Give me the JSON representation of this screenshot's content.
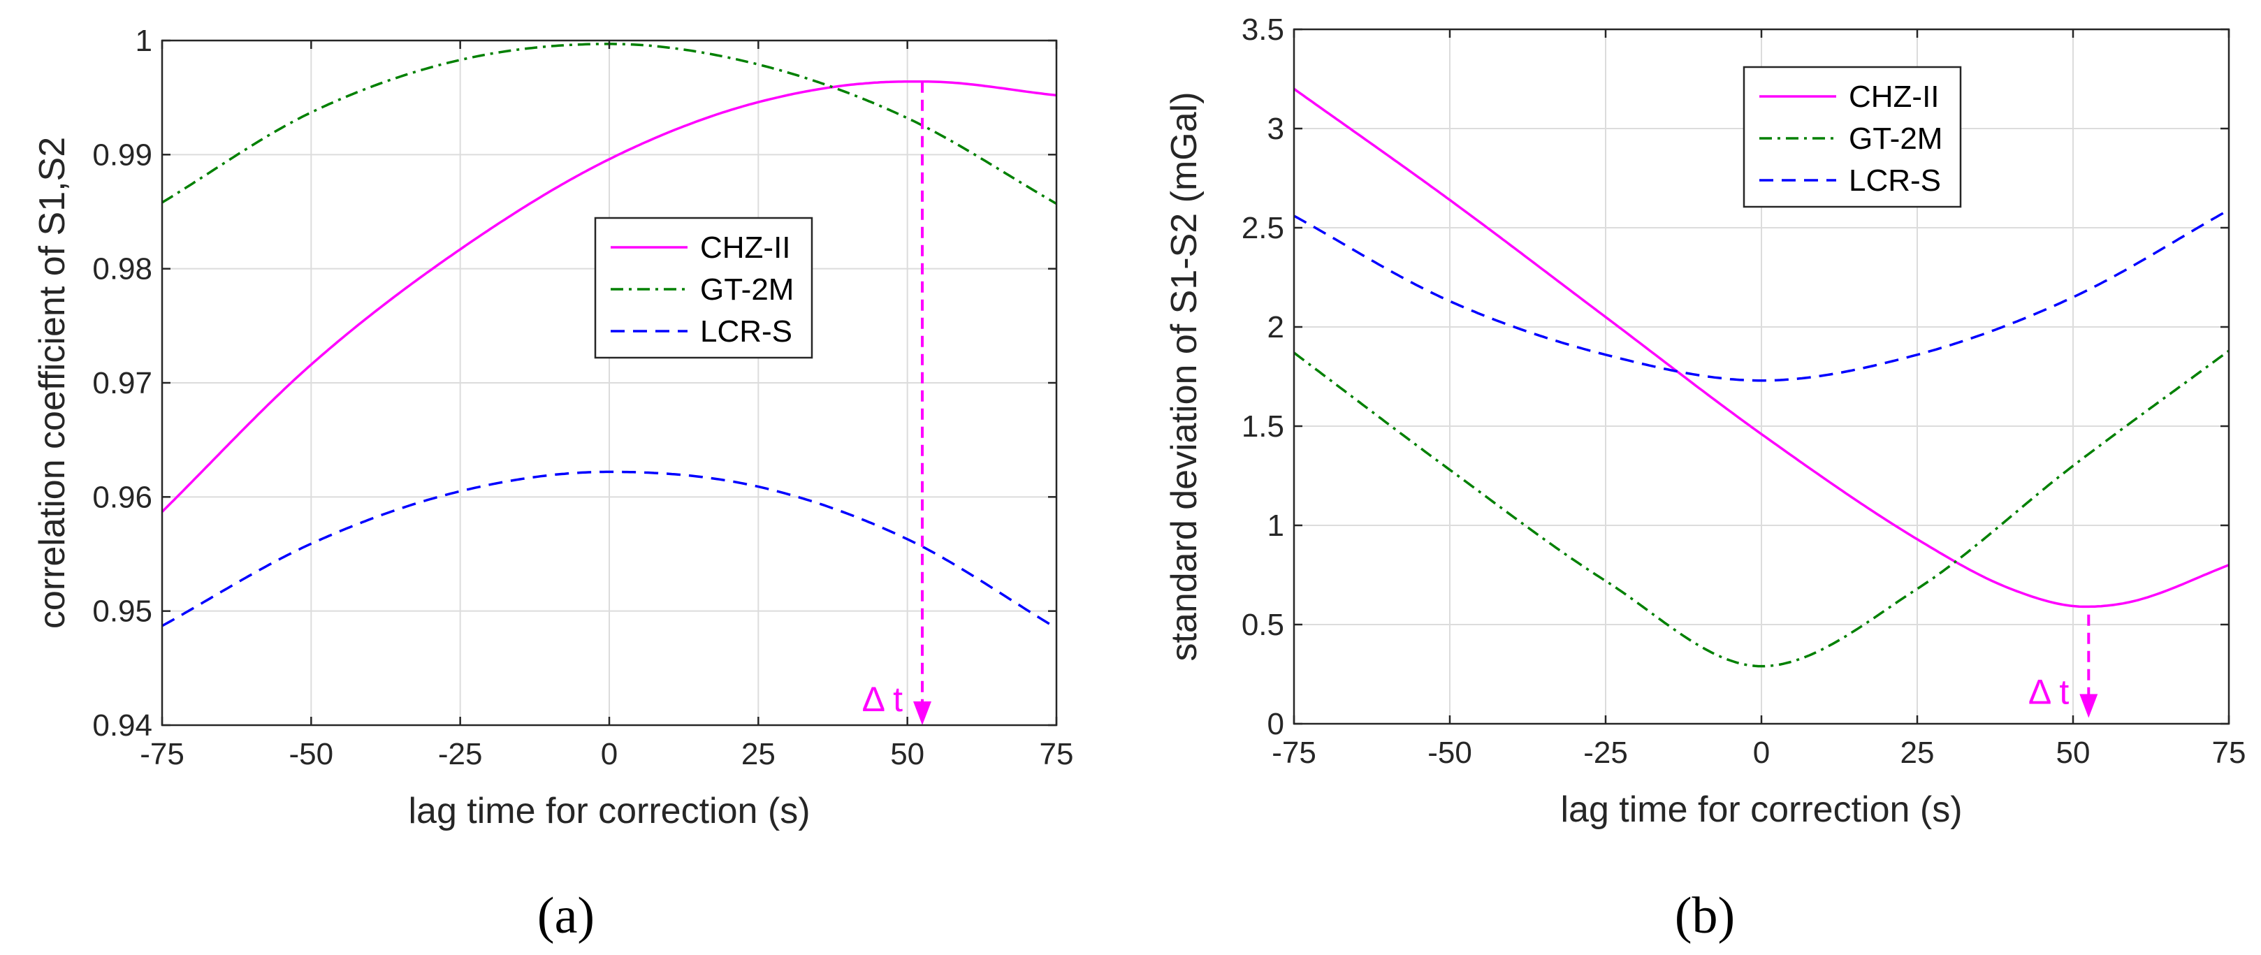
{
  "chart_data": [
    {
      "type": "line",
      "panel_label": "(a)",
      "title": "",
      "xlabel": "lag time for correction (s)",
      "ylabel": "correlation coefficient of S1,S2",
      "xlim": [
        -75,
        75
      ],
      "ylim": [
        0.94,
        1
      ],
      "xticks": [
        -75,
        -50,
        -25,
        0,
        25,
        50,
        75
      ],
      "yticks": [
        0.94,
        0.95,
        0.96,
        0.97,
        0.98,
        0.99,
        1
      ],
      "ytick_labels": [
        "0.94",
        "0.95",
        "0.96",
        "0.97",
        "0.98",
        "0.99",
        "1"
      ],
      "grid": true,
      "legend_position": "center",
      "series": [
        {
          "name": "CHZ-II",
          "color": "#ff00ff",
          "dash": "solid",
          "x": [
            -75,
            -50,
            -25,
            0,
            25,
            50,
            53,
            75
          ],
          "y": [
            0.9587,
            0.9716,
            0.9817,
            0.9896,
            0.9946,
            0.9964,
            0.9964,
            0.9952
          ]
        },
        {
          "name": "GT-2M",
          "color": "#008000",
          "dash": "dashdot",
          "x": [
            -75,
            -50,
            -25,
            0,
            25,
            50,
            75
          ],
          "y": [
            0.9858,
            0.9937,
            0.9983,
            0.9997,
            0.9979,
            0.9932,
            0.9857
          ]
        },
        {
          "name": "LCR-S",
          "color": "#0000ff",
          "dash": "dashed",
          "x": [
            -75,
            -50,
            -25,
            0,
            25,
            50,
            75
          ],
          "y": [
            0.9487,
            0.9559,
            0.9605,
            0.9622,
            0.9609,
            0.9563,
            0.9485
          ]
        }
      ],
      "annotation": {
        "text": "Δ t",
        "color": "#ff00ff",
        "x": 52.5,
        "y_from": 0.9964,
        "y_to": 0.94
      }
    },
    {
      "type": "line",
      "panel_label": "(b)",
      "title": "",
      "xlabel": "lag time for correction (s)",
      "ylabel": "standard deviation of S1-S2 (mGal)",
      "xlim": [
        -75,
        75
      ],
      "ylim": [
        0,
        3.5
      ],
      "xticks": [
        -75,
        -50,
        -25,
        0,
        25,
        50,
        75
      ],
      "yticks": [
        0,
        0.5,
        1,
        1.5,
        2,
        2.5,
        3,
        3.5
      ],
      "ytick_labels": [
        "0",
        "0.5",
        "1",
        "1.5",
        "2",
        "2.5",
        "3",
        "3.5"
      ],
      "grid": true,
      "legend_position": "top-center",
      "series": [
        {
          "name": "CHZ-II",
          "color": "#ff00ff",
          "dash": "solid",
          "x": [
            -75,
            -50,
            -25,
            0,
            25,
            40,
            52,
            60,
            75
          ],
          "y": [
            3.2,
            2.64,
            2.05,
            1.46,
            0.93,
            0.68,
            0.59,
            0.62,
            0.8
          ]
        },
        {
          "name": "GT-2M",
          "color": "#008000",
          "dash": "dashdot",
          "x": [
            -75,
            -50,
            -25,
            0,
            25,
            50,
            75
          ],
          "y": [
            1.87,
            1.28,
            0.72,
            0.29,
            0.68,
            1.3,
            1.88
          ]
        },
        {
          "name": "LCR-S",
          "color": "#0000ff",
          "dash": "dashed",
          "x": [
            -75,
            -50,
            -25,
            0,
            25,
            50,
            75
          ],
          "y": [
            2.56,
            2.13,
            1.86,
            1.73,
            1.86,
            2.15,
            2.59
          ]
        }
      ],
      "annotation": {
        "text": "Δ t",
        "color": "#ff00ff",
        "x": 52.5,
        "y_from": 0.55,
        "y_to": 0.03
      }
    }
  ]
}
